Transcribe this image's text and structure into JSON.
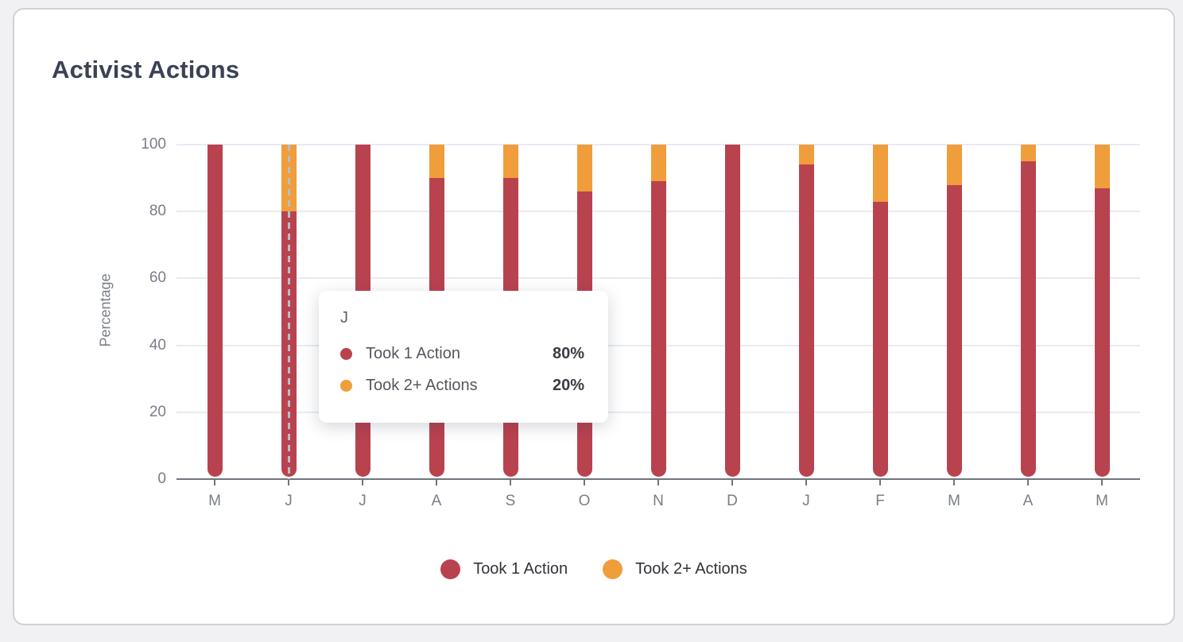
{
  "header": {
    "title": "Activist Actions"
  },
  "colors": {
    "took_1_action": "#b9424f",
    "took_2_actions": "#f09d3c",
    "title_text": "#3a4254",
    "axis_line": "#70747c",
    "tick_label": "#797e87",
    "gridline": "#e8ebf2",
    "page_background": "#f1f1f3",
    "card_background": "#ffffff",
    "card_border": "#ccd2da",
    "hover_line": "#b6bfca"
  },
  "chart_data": {
    "type": "bar",
    "stacked": true,
    "percent": true,
    "title": "Activist Actions",
    "xlabel": "",
    "ylabel": "Percentage",
    "ylim": [
      0,
      100
    ],
    "yticks": [
      0,
      20,
      40,
      60,
      80,
      100
    ],
    "grid": true,
    "legend_position": "bottom",
    "categories": [
      "M",
      "J",
      "J",
      "A",
      "S",
      "O",
      "N",
      "D",
      "J",
      "F",
      "M",
      "A",
      "M"
    ],
    "series": [
      {
        "name": "Took 1 Action",
        "color": "#b9424f",
        "values": [
          100,
          80,
          100,
          90,
          90,
          86,
          89,
          100,
          94,
          83,
          88,
          95,
          87
        ]
      },
      {
        "name": "Took 2+ Actions",
        "color": "#f09d3c",
        "values": [
          0,
          20,
          0,
          10,
          10,
          14,
          11,
          0,
          6,
          17,
          12,
          5,
          13
        ]
      }
    ],
    "hover_index": 1
  },
  "tooltip": {
    "title": "J",
    "rows": [
      {
        "label": "Took 1 Action",
        "value": "80%",
        "color": "#b9424f"
      },
      {
        "label": "Took 2+ Actions",
        "value": "20%",
        "color": "#f09d3c"
      }
    ]
  },
  "legend": {
    "items": [
      {
        "label": "Took 1 Action",
        "color": "#b9424f"
      },
      {
        "label": "Took 2+ Actions",
        "color": "#f09d3c"
      }
    ]
  }
}
